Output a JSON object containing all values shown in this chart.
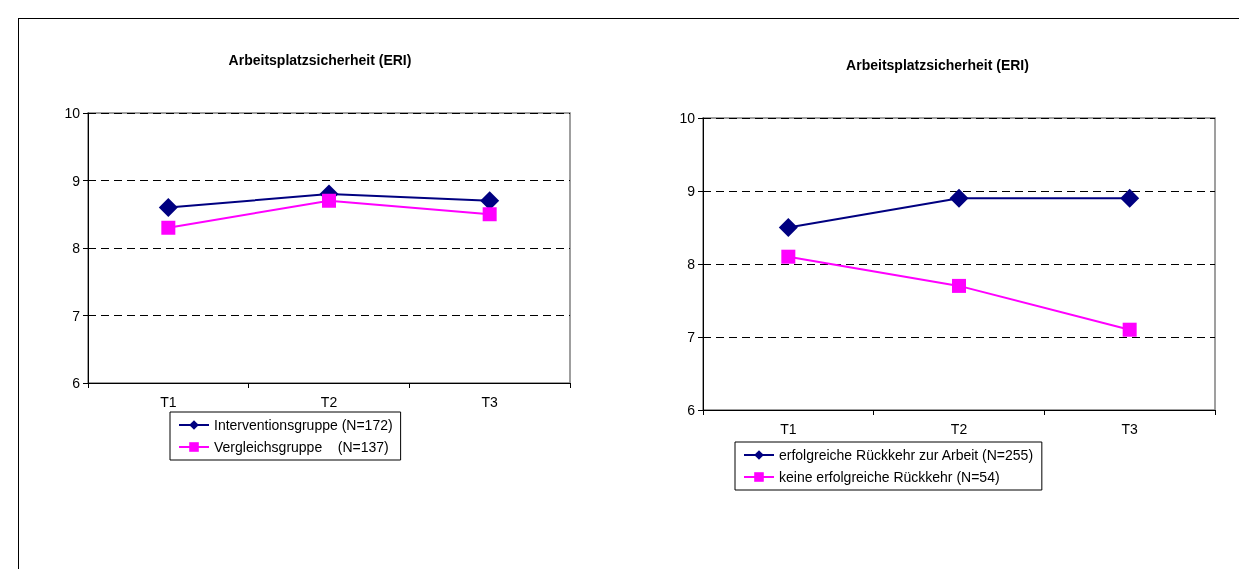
{
  "chart_data": [
    {
      "type": "line",
      "title": "Arbeitsplatzsicherheit (ERI)",
      "categories": [
        "T1",
        "T2",
        "T3"
      ],
      "ylim": [
        6,
        10
      ],
      "yticks": [
        6,
        7,
        8,
        9,
        10
      ],
      "grid": "y",
      "legend": "bottom",
      "line_style": "solid",
      "series": [
        {
          "name": "Interventionsgruppe (N=172)",
          "color": "#000080",
          "marker": "diamond",
          "values": [
            8.6,
            8.8,
            8.7
          ]
        },
        {
          "name": "Vergleichsgruppe    (N=137)",
          "color": "#ff00ff",
          "marker": "square",
          "values": [
            8.3,
            8.7,
            8.5
          ]
        }
      ]
    },
    {
      "type": "line",
      "title": "Arbeitsplatzsicherheit (ERI)",
      "categories": [
        "T1",
        "T2",
        "T3"
      ],
      "ylim": [
        6,
        10
      ],
      "yticks": [
        6,
        7,
        8,
        9,
        10
      ],
      "grid": "y",
      "legend": "bottom",
      "line_style": "solid",
      "series": [
        {
          "name": "erfolgreiche Rückkehr zur Arbeit (N=255)",
          "color": "#000080",
          "marker": "diamond",
          "values": [
            8.5,
            8.9,
            8.9
          ]
        },
        {
          "name": "keine erfolgreiche Rückkehr (N=54)",
          "color": "#ff00ff",
          "marker": "square",
          "values": [
            8.1,
            7.7,
            7.1
          ]
        }
      ]
    }
  ]
}
